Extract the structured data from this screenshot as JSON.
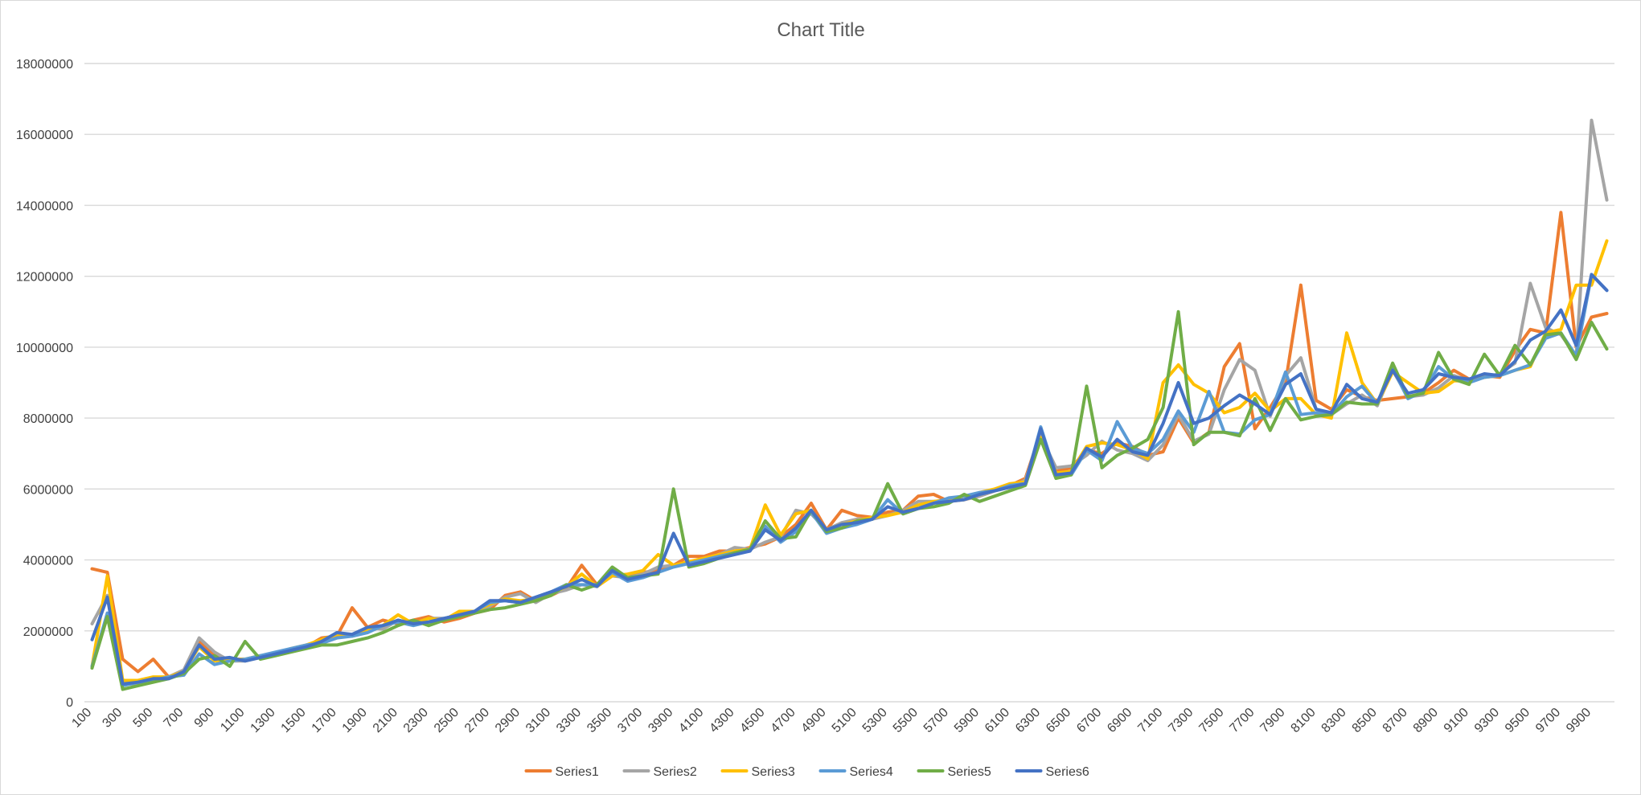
{
  "chart_data": {
    "type": "line",
    "title": "Chart Title",
    "xlabel": "",
    "ylabel": "",
    "ylim": [
      0,
      18000000
    ],
    "y_ticks": [
      0,
      2000000,
      4000000,
      6000000,
      8000000,
      10000000,
      12000000,
      14000000,
      16000000,
      18000000
    ],
    "y_tick_labels": [
      "0",
      "2000000",
      "4000000",
      "6000000",
      "8000000",
      "10000000",
      "12000000",
      "14000000",
      "16000000",
      "18000000"
    ],
    "x": [
      100,
      200,
      300,
      400,
      500,
      600,
      700,
      800,
      900,
      1000,
      1100,
      1200,
      1300,
      1400,
      1500,
      1600,
      1700,
      1800,
      1900,
      2000,
      2100,
      2200,
      2300,
      2400,
      2500,
      2600,
      2700,
      2800,
      2900,
      3000,
      3100,
      3200,
      3300,
      3400,
      3500,
      3600,
      3700,
      3800,
      3900,
      4000,
      4100,
      4200,
      4300,
      4400,
      4500,
      4600,
      4700,
      4800,
      4900,
      5000,
      5100,
      5200,
      5300,
      5400,
      5500,
      5600,
      5700,
      5800,
      5900,
      6000,
      6100,
      6200,
      6300,
      6400,
      6500,
      6600,
      6700,
      6800,
      6900,
      7000,
      7100,
      7200,
      7300,
      7400,
      7500,
      7600,
      7700,
      7800,
      7900,
      8000,
      8100,
      8200,
      8300,
      8400,
      8500,
      8600,
      8700,
      8800,
      8900,
      9000,
      9100,
      9200,
      9300,
      9400,
      9500,
      9600,
      9700,
      9800,
      9900,
      10000
    ],
    "x_tick_labels": [
      "100",
      "300",
      "500",
      "700",
      "900",
      "1100",
      "1300",
      "1500",
      "1700",
      "1900",
      "2100",
      "2300",
      "2500",
      "2700",
      "2900",
      "3100",
      "3300",
      "3500",
      "3700",
      "3900",
      "4100",
      "4300",
      "4500",
      "4700",
      "4900",
      "5100",
      "5300",
      "5500",
      "5700",
      "5900",
      "6100",
      "6300",
      "6500",
      "6700",
      "6900",
      "7100",
      "7300",
      "7500",
      "7700",
      "7900",
      "8100",
      "8300",
      "8500",
      "8700",
      "8900",
      "9100",
      "9300",
      "9500",
      "9700",
      "9900"
    ],
    "grid": true,
    "legend_position": "bottom",
    "series": [
      {
        "name": "Series1",
        "color": "#ED7D31",
        "values": [
          3750000,
          3650000,
          1200000,
          850000,
          1200000,
          700000,
          850000,
          1700000,
          1300000,
          1200000,
          1200000,
          1250000,
          1350000,
          1450000,
          1550000,
          1800000,
          1850000,
          2650000,
          2100000,
          2300000,
          2200000,
          2300000,
          2400000,
          2250000,
          2350000,
          2500000,
          2600000,
          3000000,
          3100000,
          2850000,
          3000000,
          3200000,
          3850000,
          3300000,
          3600000,
          3500000,
          3650000,
          3700000,
          3850000,
          4100000,
          4100000,
          4250000,
          4250000,
          4350000,
          4450000,
          4650000,
          5000000,
          5600000,
          4850000,
          5400000,
          5250000,
          5200000,
          5350000,
          5400000,
          5800000,
          5850000,
          5650000,
          5700000,
          5800000,
          5950000,
          6100000,
          6300000,
          7600000,
          6500000,
          6600000,
          7100000,
          7000000,
          7300000,
          7200000,
          6950000,
          7050000,
          8000000,
          7300000,
          7600000,
          9450000,
          10100000,
          7700000,
          8300000,
          9000000,
          11750000,
          8500000,
          8250000,
          8800000,
          8600000,
          8500000,
          8550000,
          8600000,
          8700000,
          9000000,
          9350000,
          9100000,
          9200000,
          9150000,
          9900000,
          10500000,
          10400000,
          13800000,
          10000000,
          10850000,
          10950000
        ]
      },
      {
        "name": "Series2",
        "color": "#A5A5A5",
        "values": [
          2200000,
          3000000,
          500000,
          500000,
          650000,
          700000,
          900000,
          1800000,
          1400000,
          1150000,
          1150000,
          1250000,
          1350000,
          1450000,
          1550000,
          1650000,
          1800000,
          1900000,
          2100000,
          2050000,
          2300000,
          2200000,
          2350000,
          2350000,
          2450000,
          2500000,
          2700000,
          2950000,
          3050000,
          2800000,
          3050000,
          3150000,
          3300000,
          3250000,
          3550000,
          3500000,
          3600000,
          3800000,
          3850000,
          3900000,
          4050000,
          4150000,
          4350000,
          4300000,
          4500000,
          4650000,
          5400000,
          5300000,
          4850000,
          5050000,
          5150000,
          5150000,
          5250000,
          5400000,
          5650000,
          5650000,
          5700000,
          5700000,
          5800000,
          5950000,
          6050000,
          6250000,
          7500000,
          6600000,
          6650000,
          6950000,
          7350000,
          7100000,
          7000000,
          6800000,
          7250000,
          8100000,
          7350000,
          7550000,
          8800000,
          9650000,
          9350000,
          8050000,
          9200000,
          9700000,
          8250000,
          8100000,
          8400000,
          8650000,
          8350000,
          9350000,
          8600000,
          8650000,
          8850000,
          9200000,
          9050000,
          9150000,
          9250000,
          9550000,
          11800000,
          10550000,
          10350000,
          9750000,
          16400000,
          14150000
        ]
      },
      {
        "name": "Series3",
        "color": "#FFC000",
        "values": [
          1000000,
          3550000,
          600000,
          600000,
          700000,
          700000,
          850000,
          1550000,
          1150000,
          1200000,
          1200000,
          1300000,
          1350000,
          1500000,
          1600000,
          1750000,
          1900000,
          1850000,
          2050000,
          2150000,
          2450000,
          2200000,
          2350000,
          2300000,
          2550000,
          2550000,
          2750000,
          2900000,
          2850000,
          2900000,
          3050000,
          3250000,
          3600000,
          3250000,
          3550000,
          3600000,
          3700000,
          4150000,
          3850000,
          3950000,
          4050000,
          4150000,
          4250000,
          4300000,
          5550000,
          4700000,
          5300000,
          5400000,
          4850000,
          5000000,
          5100000,
          5200000,
          5250000,
          5350000,
          5550000,
          5650000,
          5700000,
          5700000,
          5900000,
          6000000,
          6150000,
          6200000,
          7450000,
          6450000,
          6500000,
          7200000,
          7300000,
          7250000,
          7100000,
          6850000,
          9000000,
          9500000,
          8950000,
          8700000,
          8150000,
          8300000,
          8700000,
          8200000,
          8550000,
          8550000,
          8100000,
          8000000,
          10400000,
          9000000,
          8400000,
          9300000,
          9000000,
          8700000,
          8750000,
          9050000,
          9050000,
          9150000,
          9200000,
          9350000,
          9450000,
          10400000,
          10500000,
          11750000,
          11750000,
          13000000
        ]
      },
      {
        "name": "Series4",
        "color": "#5B9BD5",
        "values": [
          1000000,
          2500000,
          450000,
          550000,
          600000,
          700000,
          750000,
          1350000,
          1050000,
          1150000,
          1200000,
          1300000,
          1400000,
          1500000,
          1600000,
          1650000,
          1800000,
          1850000,
          1950000,
          2150000,
          2250000,
          2150000,
          2250000,
          2350000,
          2450000,
          2550000,
          2800000,
          2850000,
          2800000,
          2950000,
          3100000,
          3300000,
          3300000,
          3300000,
          3650000,
          3400000,
          3500000,
          3650000,
          3800000,
          3900000,
          4000000,
          4100000,
          4200000,
          4250000,
          4950000,
          4500000,
          4800000,
          5350000,
          4750000,
          4900000,
          5000000,
          5150000,
          5700000,
          5300000,
          5450000,
          5600000,
          5750000,
          5800000,
          5900000,
          5950000,
          6100000,
          6150000,
          7750000,
          6400000,
          6400000,
          7100000,
          6800000,
          7900000,
          7150000,
          7000000,
          7400000,
          8200000,
          7600000,
          8750000,
          7600000,
          7550000,
          7950000,
          8100000,
          9300000,
          8100000,
          8150000,
          8100000,
          8600000,
          8900000,
          8400000,
          9400000,
          8550000,
          8750000,
          9450000,
          9100000,
          9000000,
          9150000,
          9200000,
          9350000,
          9500000,
          10250000,
          10400000,
          9750000,
          12050000,
          11600000
        ]
      },
      {
        "name": "Series5",
        "color": "#70AD47",
        "values": [
          950000,
          2400000,
          350000,
          450000,
          550000,
          650000,
          800000,
          1200000,
          1300000,
          1000000,
          1700000,
          1200000,
          1300000,
          1400000,
          1500000,
          1600000,
          1600000,
          1700000,
          1800000,
          1950000,
          2150000,
          2300000,
          2150000,
          2300000,
          2400000,
          2500000,
          2600000,
          2650000,
          2750000,
          2850000,
          3000000,
          3300000,
          3150000,
          3300000,
          3800000,
          3500000,
          3550000,
          3600000,
          6000000,
          3800000,
          3900000,
          4050000,
          4200000,
          4300000,
          5100000,
          4600000,
          4650000,
          5400000,
          4800000,
          4900000,
          5100000,
          5150000,
          6150000,
          5300000,
          5450000,
          5500000,
          5600000,
          5850000,
          5650000,
          5800000,
          5950000,
          6100000,
          7400000,
          6300000,
          6400000,
          8900000,
          6600000,
          6950000,
          7150000,
          7400000,
          8300000,
          11000000,
          7250000,
          7600000,
          7600000,
          7500000,
          8550000,
          7650000,
          8550000,
          7950000,
          8050000,
          8100000,
          8450000,
          8400000,
          8400000,
          9550000,
          8600000,
          8700000,
          9850000,
          9100000,
          8950000,
          9800000,
          9200000,
          10050000,
          9500000,
          10350000,
          10400000,
          9650000,
          10700000,
          9950000
        ]
      },
      {
        "name": "Series6",
        "color": "#4472C4",
        "values": [
          1750000,
          2950000,
          500000,
          550000,
          650000,
          650000,
          850000,
          1600000,
          1200000,
          1250000,
          1150000,
          1250000,
          1350000,
          1450000,
          1550000,
          1700000,
          1950000,
          1900000,
          2100000,
          2150000,
          2300000,
          2200000,
          2250000,
          2350000,
          2450000,
          2550000,
          2850000,
          2850000,
          2800000,
          2950000,
          3100000,
          3250000,
          3450000,
          3250000,
          3700000,
          3450000,
          3550000,
          3650000,
          4750000,
          3850000,
          3950000,
          4050000,
          4150000,
          4250000,
          4850000,
          4550000,
          4900000,
          5400000,
          4850000,
          5000000,
          5050000,
          5150000,
          5500000,
          5350000,
          5450000,
          5600000,
          5650000,
          5700000,
          5850000,
          5950000,
          6050000,
          6150000,
          7700000,
          6400000,
          6450000,
          7150000,
          6900000,
          7400000,
          7050000,
          6950000,
          7850000,
          9000000,
          7850000,
          8000000,
          8350000,
          8650000,
          8400000,
          8100000,
          8950000,
          9250000,
          8250000,
          8150000,
          8950000,
          8550000,
          8450000,
          9350000,
          8700000,
          8800000,
          9250000,
          9150000,
          9100000,
          9250000,
          9200000,
          9600000,
          10200000,
          10450000,
          11050000,
          10050000,
          12050000,
          11600000
        ]
      }
    ]
  }
}
